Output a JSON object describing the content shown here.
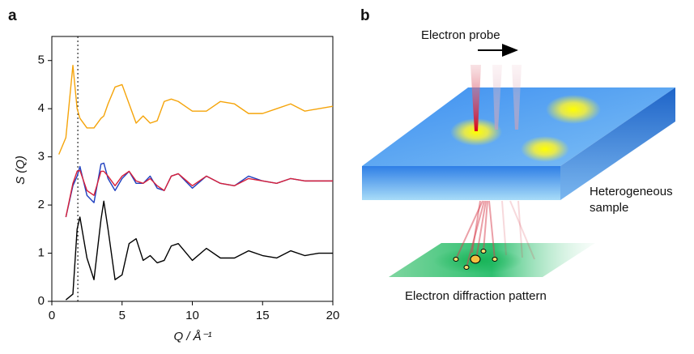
{
  "chart_data": {
    "type": "line",
    "panel_label": "a",
    "xlabel": "Q / Å⁻¹",
    "ylabel": "S (Q)",
    "xlim": [
      0,
      20
    ],
    "xticks": [
      0,
      5,
      10,
      15,
      20
    ],
    "ylim": [
      0,
      5.5
    ],
    "yticks": [
      0,
      1,
      2,
      3,
      4,
      5
    ],
    "vline": 1.85,
    "x": [
      0.5,
      1,
      1.5,
      1.8,
      2,
      2.5,
      3,
      3.5,
      3.7,
      4,
      4.5,
      5,
      5.5,
      6,
      6.5,
      7,
      7.5,
      8,
      8.5,
      9,
      10,
      11,
      12,
      13,
      14,
      15,
      16,
      17,
      18,
      19,
      20
    ],
    "series": [
      {
        "color": "#000000",
        "values": [
          null,
          0.03,
          0.15,
          1.5,
          1.75,
          0.9,
          0.45,
          1.7,
          2.08,
          1.5,
          0.45,
          0.55,
          1.2,
          1.3,
          0.85,
          0.95,
          0.8,
          0.85,
          1.15,
          1.2,
          0.85,
          1.1,
          0.9,
          0.9,
          1.05,
          0.95,
          0.9,
          1.05,
          0.95,
          1.0,
          1.0
        ]
      },
      {
        "color": "#1f3fbf",
        "values": [
          null,
          1.75,
          2.4,
          2.6,
          2.8,
          2.2,
          2.05,
          2.85,
          2.87,
          2.55,
          2.3,
          2.55,
          2.7,
          2.45,
          2.45,
          2.6,
          2.35,
          2.3,
          2.6,
          2.65,
          2.35,
          2.6,
          2.45,
          2.4,
          2.6,
          2.5,
          2.45,
          2.55,
          2.5,
          2.5,
          2.5
        ]
      },
      {
        "color": "#d8203a",
        "values": [
          null,
          1.75,
          2.45,
          2.7,
          2.72,
          2.3,
          2.2,
          2.7,
          2.7,
          2.6,
          2.4,
          2.6,
          2.7,
          2.5,
          2.45,
          2.55,
          2.4,
          2.3,
          2.6,
          2.65,
          2.4,
          2.6,
          2.45,
          2.4,
          2.55,
          2.5,
          2.45,
          2.55,
          2.5,
          2.5,
          2.5
        ]
      },
      {
        "color": "#f5a40a",
        "values": [
          3.05,
          3.4,
          4.9,
          4.0,
          3.8,
          3.6,
          3.6,
          3.8,
          3.85,
          4.1,
          4.45,
          4.5,
          4.1,
          3.7,
          3.85,
          3.7,
          3.75,
          4.15,
          4.2,
          4.15,
          3.95,
          3.95,
          4.15,
          4.1,
          3.9,
          3.9,
          4.0,
          4.1,
          3.95,
          4.0,
          4.05
        ]
      }
    ]
  },
  "diagram": {
    "panel_label": "b",
    "probe_label": "Electron probe",
    "sample_label": [
      "Heterogeneous",
      "sample"
    ],
    "pattern_label": "Electron diffraction pattern"
  }
}
